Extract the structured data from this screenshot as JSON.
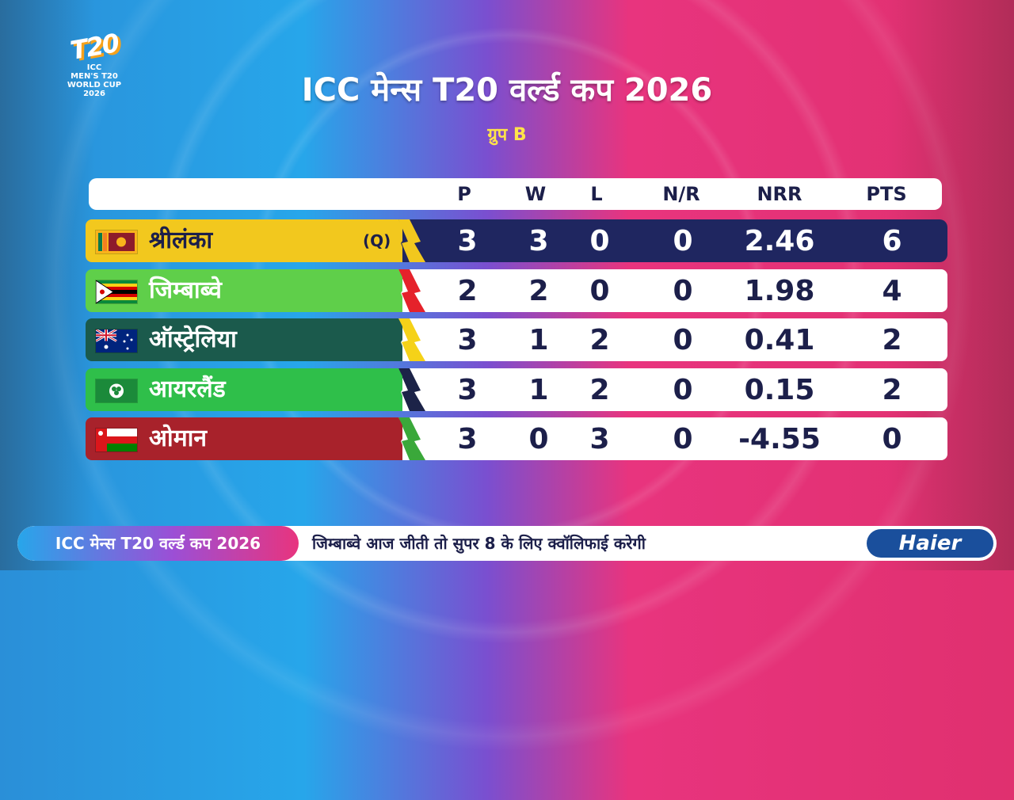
{
  "logo": {
    "mark": "T20",
    "lines": [
      "ICC",
      "MEN'S T20",
      "WORLD CUP",
      "2026"
    ]
  },
  "title": "ICC मेन्स T20 वर्ल्ड कप 2026",
  "subtitle": "ग्रुप B",
  "columns": [
    "P",
    "W",
    "L",
    "N/R",
    "NRR",
    "PTS"
  ],
  "teams": [
    {
      "name": "श्रीलंका",
      "qualifier": "(Q)",
      "p": "3",
      "w": "3",
      "l": "0",
      "nr": "0",
      "nrr": "2.46",
      "pts": "6",
      "team_color": "#f2c81e",
      "flash_color": "#f2c81e",
      "flag_icon": "sri-lanka-flag-icon"
    },
    {
      "name": "जिम्बाब्वे",
      "qualifier": "",
      "p": "2",
      "w": "2",
      "l": "0",
      "nr": "0",
      "nrr": "1.98",
      "pts": "4",
      "team_color": "#5fcf4a",
      "flash_color": "#e5222b",
      "flag_icon": "zimbabwe-flag-icon"
    },
    {
      "name": "ऑस्ट्रेलिया",
      "qualifier": "",
      "p": "3",
      "w": "1",
      "l": "2",
      "nr": "0",
      "nrr": "0.41",
      "pts": "2",
      "team_color": "#1b5a4c",
      "flash_color": "#f5d218",
      "flag_icon": "australia-flag-icon"
    },
    {
      "name": "आयरलैंड",
      "qualifier": "",
      "p": "3",
      "w": "1",
      "l": "2",
      "nr": "0",
      "nrr": "0.15",
      "pts": "2",
      "team_color": "#2fbf4a",
      "flash_color": "#1c2348",
      "flag_icon": "ireland-flag-icon"
    },
    {
      "name": "ओमान",
      "qualifier": "",
      "p": "3",
      "w": "0",
      "l": "3",
      "nr": "0",
      "nrr": "-4.55",
      "pts": "0",
      "team_color": "#a8222b",
      "flash_color": "#3aa83a",
      "flag_icon": "oman-flag-icon"
    }
  ],
  "ticker": {
    "label": "ICC मेन्स T20 वर्ल्ड कप 2026",
    "text": "जिम्बाब्वे आज जीती तो सुपर 8 के लिए क्वॉलिफाई करेगी",
    "sponsor": "Haier"
  }
}
